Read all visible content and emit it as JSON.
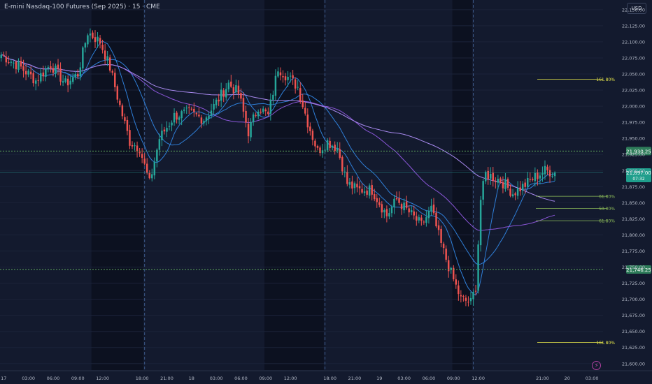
{
  "header": {
    "title": "E-mini Nasdaq-100 Futures (Sep 2025) · 15 · CME",
    "currency_button": "USD",
    "alert_icon": "lightning-icon"
  },
  "colors": {
    "background": "#131a2e",
    "session_dark": "#0c1120",
    "up_candle": "#26a69a",
    "down_candle": "#ef5350",
    "fib_line": "#e6e64a",
    "fib_green": "#8fbf5a",
    "level_line": "#5fa85f",
    "ma_blue": "#2f7fd8",
    "ma_purple": "#8a56d8",
    "ma_violet": "#a98af0",
    "axis_text": "#b3b9c7"
  },
  "chart_data": {
    "type": "candlestick",
    "title": "E-mini Nasdaq-100 Futures (Sep 2025) · 15 · CME",
    "ylim": [
      21590,
      22165
    ],
    "y_ticks": [
      21600,
      21625,
      21650,
      21675,
      21700,
      21725,
      21750,
      21775,
      21800,
      21825,
      21850,
      21875,
      21900,
      21925,
      21950,
      21975,
      22000,
      22025,
      22050,
      22075,
      22100,
      22125,
      22150
    ],
    "x_tick_labels": [
      "17",
      "03:00",
      "06:00",
      "09:00",
      "12:00",
      "18:00",
      "21:00",
      "18",
      "03:00",
      "06:00",
      "09:00",
      "12:00",
      "18:00",
      "21:00",
      "19",
      "03:00",
      "06:00",
      "09:00",
      "12:00",
      "21:00",
      "20",
      "03:00"
    ],
    "x_tick_slots": [
      1,
      11,
      21,
      31,
      41,
      57,
      67,
      77,
      87,
      97,
      107,
      117,
      133,
      143,
      153,
      163,
      173,
      183,
      193,
      219,
      229,
      239
    ],
    "candle_slots": 244,
    "price_path": [
      [
        0,
        22080
      ],
      [
        8,
        22060
      ],
      [
        14,
        22040
      ],
      [
        20,
        22065
      ],
      [
        26,
        22035
      ],
      [
        31,
        22050
      ],
      [
        35,
        22115
      ],
      [
        40,
        22100
      ],
      [
        44,
        22060
      ],
      [
        48,
        22000
      ],
      [
        52,
        21945
      ],
      [
        56,
        21935
      ],
      [
        60,
        21880
      ],
      [
        64,
        21950
      ],
      [
        70,
        21985
      ],
      [
        76,
        21990
      ],
      [
        82,
        21980
      ],
      [
        86,
        22000
      ],
      [
        92,
        22035
      ],
      [
        96,
        22020
      ],
      [
        100,
        21960
      ],
      [
        104,
        22000
      ],
      [
        108,
        21985
      ],
      [
        112,
        22060
      ],
      [
        116,
        22045
      ],
      [
        120,
        22030
      ],
      [
        124,
        21975
      ],
      [
        128,
        21930
      ],
      [
        132,
        21945
      ],
      [
        136,
        21935
      ],
      [
        140,
        21880
      ],
      [
        144,
        21870
      ],
      [
        150,
        21870
      ],
      [
        156,
        21830
      ],
      [
        160,
        21855
      ],
      [
        165,
        21835
      ],
      [
        170,
        21815
      ],
      [
        174,
        21840
      ],
      [
        178,
        21785
      ],
      [
        182,
        21740
      ],
      [
        186,
        21700
      ],
      [
        190,
        21695
      ],
      [
        192,
        21720
      ],
      [
        194,
        21855
      ],
      [
        196,
        21895
      ],
      [
        202,
        21885
      ],
      [
        207,
        21865
      ],
      [
        211,
        21875
      ],
      [
        216,
        21890
      ],
      [
        220,
        21900
      ],
      [
        224,
        21897
      ]
    ],
    "current_price": "21,897.00",
    "countdown": "07:32",
    "horizontal_levels": [
      {
        "price": 21930.25,
        "label": "21,930.25"
      },
      {
        "price": 21746.25,
        "label": "21,746.25"
      }
    ],
    "fib_levels": [
      {
        "price": 22042,
        "label": "161.80%",
        "color": "yellow"
      },
      {
        "price": 21633,
        "label": "161.80%",
        "color": "yellow"
      },
      {
        "price": 21860,
        "label": "61.80%",
        "color": "green"
      },
      {
        "price": 21841,
        "label": "50.00%",
        "color": "green"
      },
      {
        "price": 21822,
        "label": "61.80%",
        "color": "green"
      }
    ],
    "session_boundaries": [
      58,
      131,
      191
    ],
    "session_shades": [
      [
        37,
        58
      ],
      [
        107,
        131
      ],
      [
        183,
        191
      ]
    ],
    "moving_averages": [
      {
        "period": 9,
        "color": "blue"
      },
      {
        "period": 21,
        "color": "blue"
      },
      {
        "period": 50,
        "color": "purple"
      },
      {
        "period": 100,
        "color": "violet"
      }
    ]
  }
}
